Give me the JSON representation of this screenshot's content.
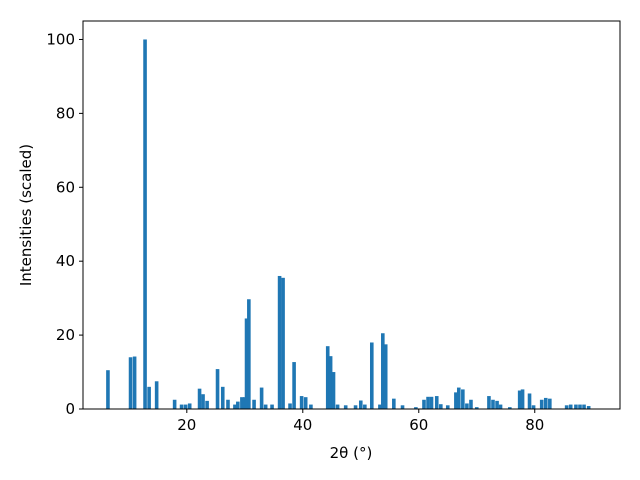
{
  "chart_data": {
    "type": "bar",
    "x_label": "2θ (°)",
    "y_label": "Intensities (scaled)",
    "color": "#1f77b4",
    "x": [
      6.4,
      10.3,
      11.0,
      12.8,
      13.5,
      14.8,
      17.9,
      19.1,
      19.8,
      20.5,
      22.2,
      22.8,
      23.5,
      25.3,
      26.2,
      27.1,
      28.3,
      28.8,
      29.5,
      30.0,
      30.3,
      30.7,
      31.6,
      32.9,
      33.6,
      34.7,
      36.0,
      36.6,
      37.8,
      38.5,
      39.8,
      40.5,
      41.4,
      44.3,
      44.8,
      45.3,
      46.0,
      47.4,
      49.1,
      50.0,
      50.7,
      51.9,
      53.3,
      53.8,
      54.3,
      55.7,
      57.2,
      59.5,
      60.9,
      61.6,
      62.2,
      63.1,
      63.8,
      65.0,
      66.4,
      66.9,
      67.6,
      68.3,
      69.0,
      70.0,
      72.1,
      72.8,
      73.5,
      74.1,
      75.7,
      77.4,
      77.9,
      79.1,
      79.8,
      81.2,
      81.9,
      82.6,
      85.5,
      86.2,
      87.1,
      87.8,
      88.5,
      89.3
    ],
    "values": [
      10.5,
      14,
      14.2,
      100,
      6,
      7.5,
      2.5,
      1.2,
      1.2,
      1.5,
      5.5,
      4,
      2.2,
      10.8,
      6,
      2.5,
      1.2,
      2,
      3.2,
      3.2,
      24.5,
      29.7,
      2.5,
      5.8,
      1.2,
      1.2,
      36,
      35.5,
      1.5,
      12.7,
      3.5,
      3.2,
      1.2,
      17,
      14.3,
      10,
      1.2,
      1,
      1,
      2.3,
      1.2,
      18,
      1.2,
      20.5,
      17.5,
      2.8,
      1,
      0.5,
      2.5,
      3.3,
      3.3,
      3.5,
      1.3,
      1,
      4.5,
      5.8,
      5.3,
      1.5,
      2.5,
      0.5,
      3.5,
      2.5,
      2.2,
      1.2,
      0.5,
      5,
      5.3,
      4.2,
      1,
      2.5,
      3,
      2.8,
      1,
      1.2,
      1.2,
      1.2,
      1.2,
      0.8
    ],
    "xlim": [
      2.1,
      94.7
    ],
    "ylim": [
      0,
      105
    ],
    "xticks": [
      20,
      40,
      60,
      80
    ],
    "yticks": [
      0,
      20,
      40,
      60,
      80,
      100
    ]
  }
}
